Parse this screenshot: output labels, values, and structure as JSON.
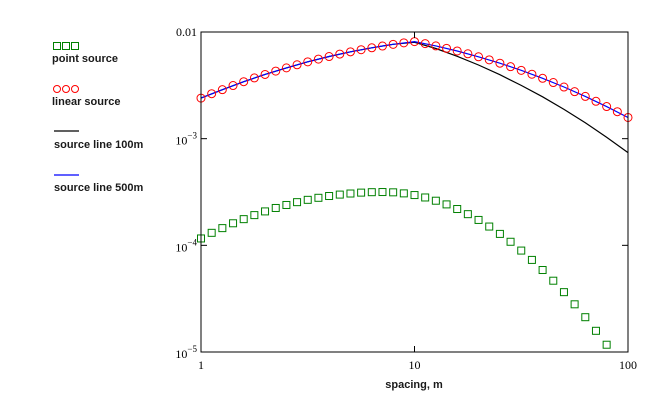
{
  "chart_data": {
    "type": "line",
    "title": "",
    "xlabel": "spacing, m",
    "ylabel": "",
    "xscale": "log",
    "yscale": "log",
    "xlim": [
      1,
      100
    ],
    "ylim": [
      1e-05,
      0.01
    ],
    "x_ticks": [
      "1",
      "10",
      "100"
    ],
    "y_ticks": [
      {
        "base": "0.01",
        "exp": ""
      },
      {
        "base": "10",
        "exp": "−3"
      },
      {
        "base": "10",
        "exp": "−4"
      },
      {
        "base": "10",
        "exp": "−5"
      }
    ],
    "legend_position": "left",
    "series": [
      {
        "name": "point source",
        "style": "markers",
        "marker": "square",
        "color": "#008000",
        "x": [
          1,
          1.122,
          1.259,
          1.413,
          1.585,
          1.778,
          1.995,
          2.239,
          2.512,
          2.818,
          3.162,
          3.548,
          3.981,
          4.467,
          5.012,
          5.623,
          6.31,
          7.079,
          7.943,
          8.913,
          10,
          11.22,
          12.59,
          14.13,
          15.85,
          17.78,
          19.95,
          22.39,
          25.12,
          28.18,
          31.62,
          35.48,
          39.81,
          44.67,
          50.12,
          56.23,
          63.1,
          70.79,
          79.43
        ],
        "y": [
          0.000116,
          0.000131,
          0.000145,
          0.000161,
          0.000176,
          0.000192,
          0.000208,
          0.000224,
          0.000239,
          0.000254,
          0.000267,
          0.000279,
          0.00029,
          0.000299,
          0.000306,
          0.000312,
          0.000315,
          0.000316,
          0.000314,
          0.000307,
          0.000296,
          0.000281,
          0.000262,
          0.000242,
          0.000219,
          0.000196,
          0.000173,
          0.00015,
          0.000128,
          0.000108,
          8.93e-05,
          7.3e-05,
          5.87e-05,
          4.66e-05,
          3.64e-05,
          2.8e-05,
          2.12e-05,
          1.58e-05,
          1.17e-05
        ]
      },
      {
        "name": "linear source",
        "style": "markers",
        "marker": "circle",
        "color": "#ff0000",
        "x": [
          1,
          1.122,
          1.259,
          1.413,
          1.585,
          1.778,
          1.995,
          2.239,
          2.512,
          2.818,
          3.162,
          3.548,
          3.981,
          4.467,
          5.012,
          5.623,
          6.31,
          7.079,
          7.943,
          8.913,
          10,
          11.22,
          12.59,
          14.13,
          15.85,
          17.78,
          19.95,
          22.39,
          25.12,
          28.18,
          31.62,
          35.48,
          39.81,
          44.67,
          50.12,
          56.23,
          63.1,
          70.79,
          79.43,
          89.13,
          100
        ],
        "y": [
          0.0024,
          0.00264,
          0.00288,
          0.00315,
          0.00342,
          0.00371,
          0.004,
          0.0043,
          0.00461,
          0.00493,
          0.00525,
          0.00557,
          0.00589,
          0.00621,
          0.00652,
          0.00682,
          0.00711,
          0.00739,
          0.00766,
          0.00791,
          0.00813,
          0.00778,
          0.00741,
          0.00703,
          0.00664,
          0.00625,
          0.00586,
          0.00548,
          0.0051,
          0.00473,
          0.00437,
          0.00402,
          0.00368,
          0.00336,
          0.00305,
          0.00276,
          0.00249,
          0.00224,
          0.002,
          0.00179,
          0.00158
        ]
      },
      {
        "name": "source line 100m",
        "style": "line",
        "color": "#000000",
        "x": [
          1,
          1.259,
          1.585,
          1.995,
          2.512,
          3.162,
          3.981,
          5.012,
          6.31,
          7.943,
          10,
          12.59,
          15.85,
          19.95,
          25.12,
          31.62,
          39.81,
          50.12,
          63.1,
          79.43,
          100
        ],
        "y": [
          0.0024,
          0.00288,
          0.00342,
          0.004,
          0.00461,
          0.00525,
          0.00589,
          0.00652,
          0.00711,
          0.00766,
          0.008,
          0.00701,
          0.00592,
          0.0049,
          0.00398,
          0.00316,
          0.00247,
          0.00188,
          0.00141,
          0.00103,
          0.000741
        ]
      },
      {
        "name": "source line 500m",
        "style": "line",
        "color": "#0000ff",
        "x": [
          1,
          1.259,
          1.585,
          1.995,
          2.512,
          3.162,
          3.981,
          5.012,
          6.31,
          7.943,
          10,
          12.59,
          15.85,
          19.95,
          25.12,
          31.62,
          39.81,
          50.12,
          63.1,
          79.43,
          100
        ],
        "y": [
          0.0024,
          0.00288,
          0.00342,
          0.004,
          0.00461,
          0.00525,
          0.00589,
          0.00652,
          0.00711,
          0.00766,
          0.00813,
          0.00741,
          0.00664,
          0.00586,
          0.0051,
          0.00437,
          0.00368,
          0.00305,
          0.00249,
          0.002,
          0.00158
        ]
      }
    ]
  }
}
